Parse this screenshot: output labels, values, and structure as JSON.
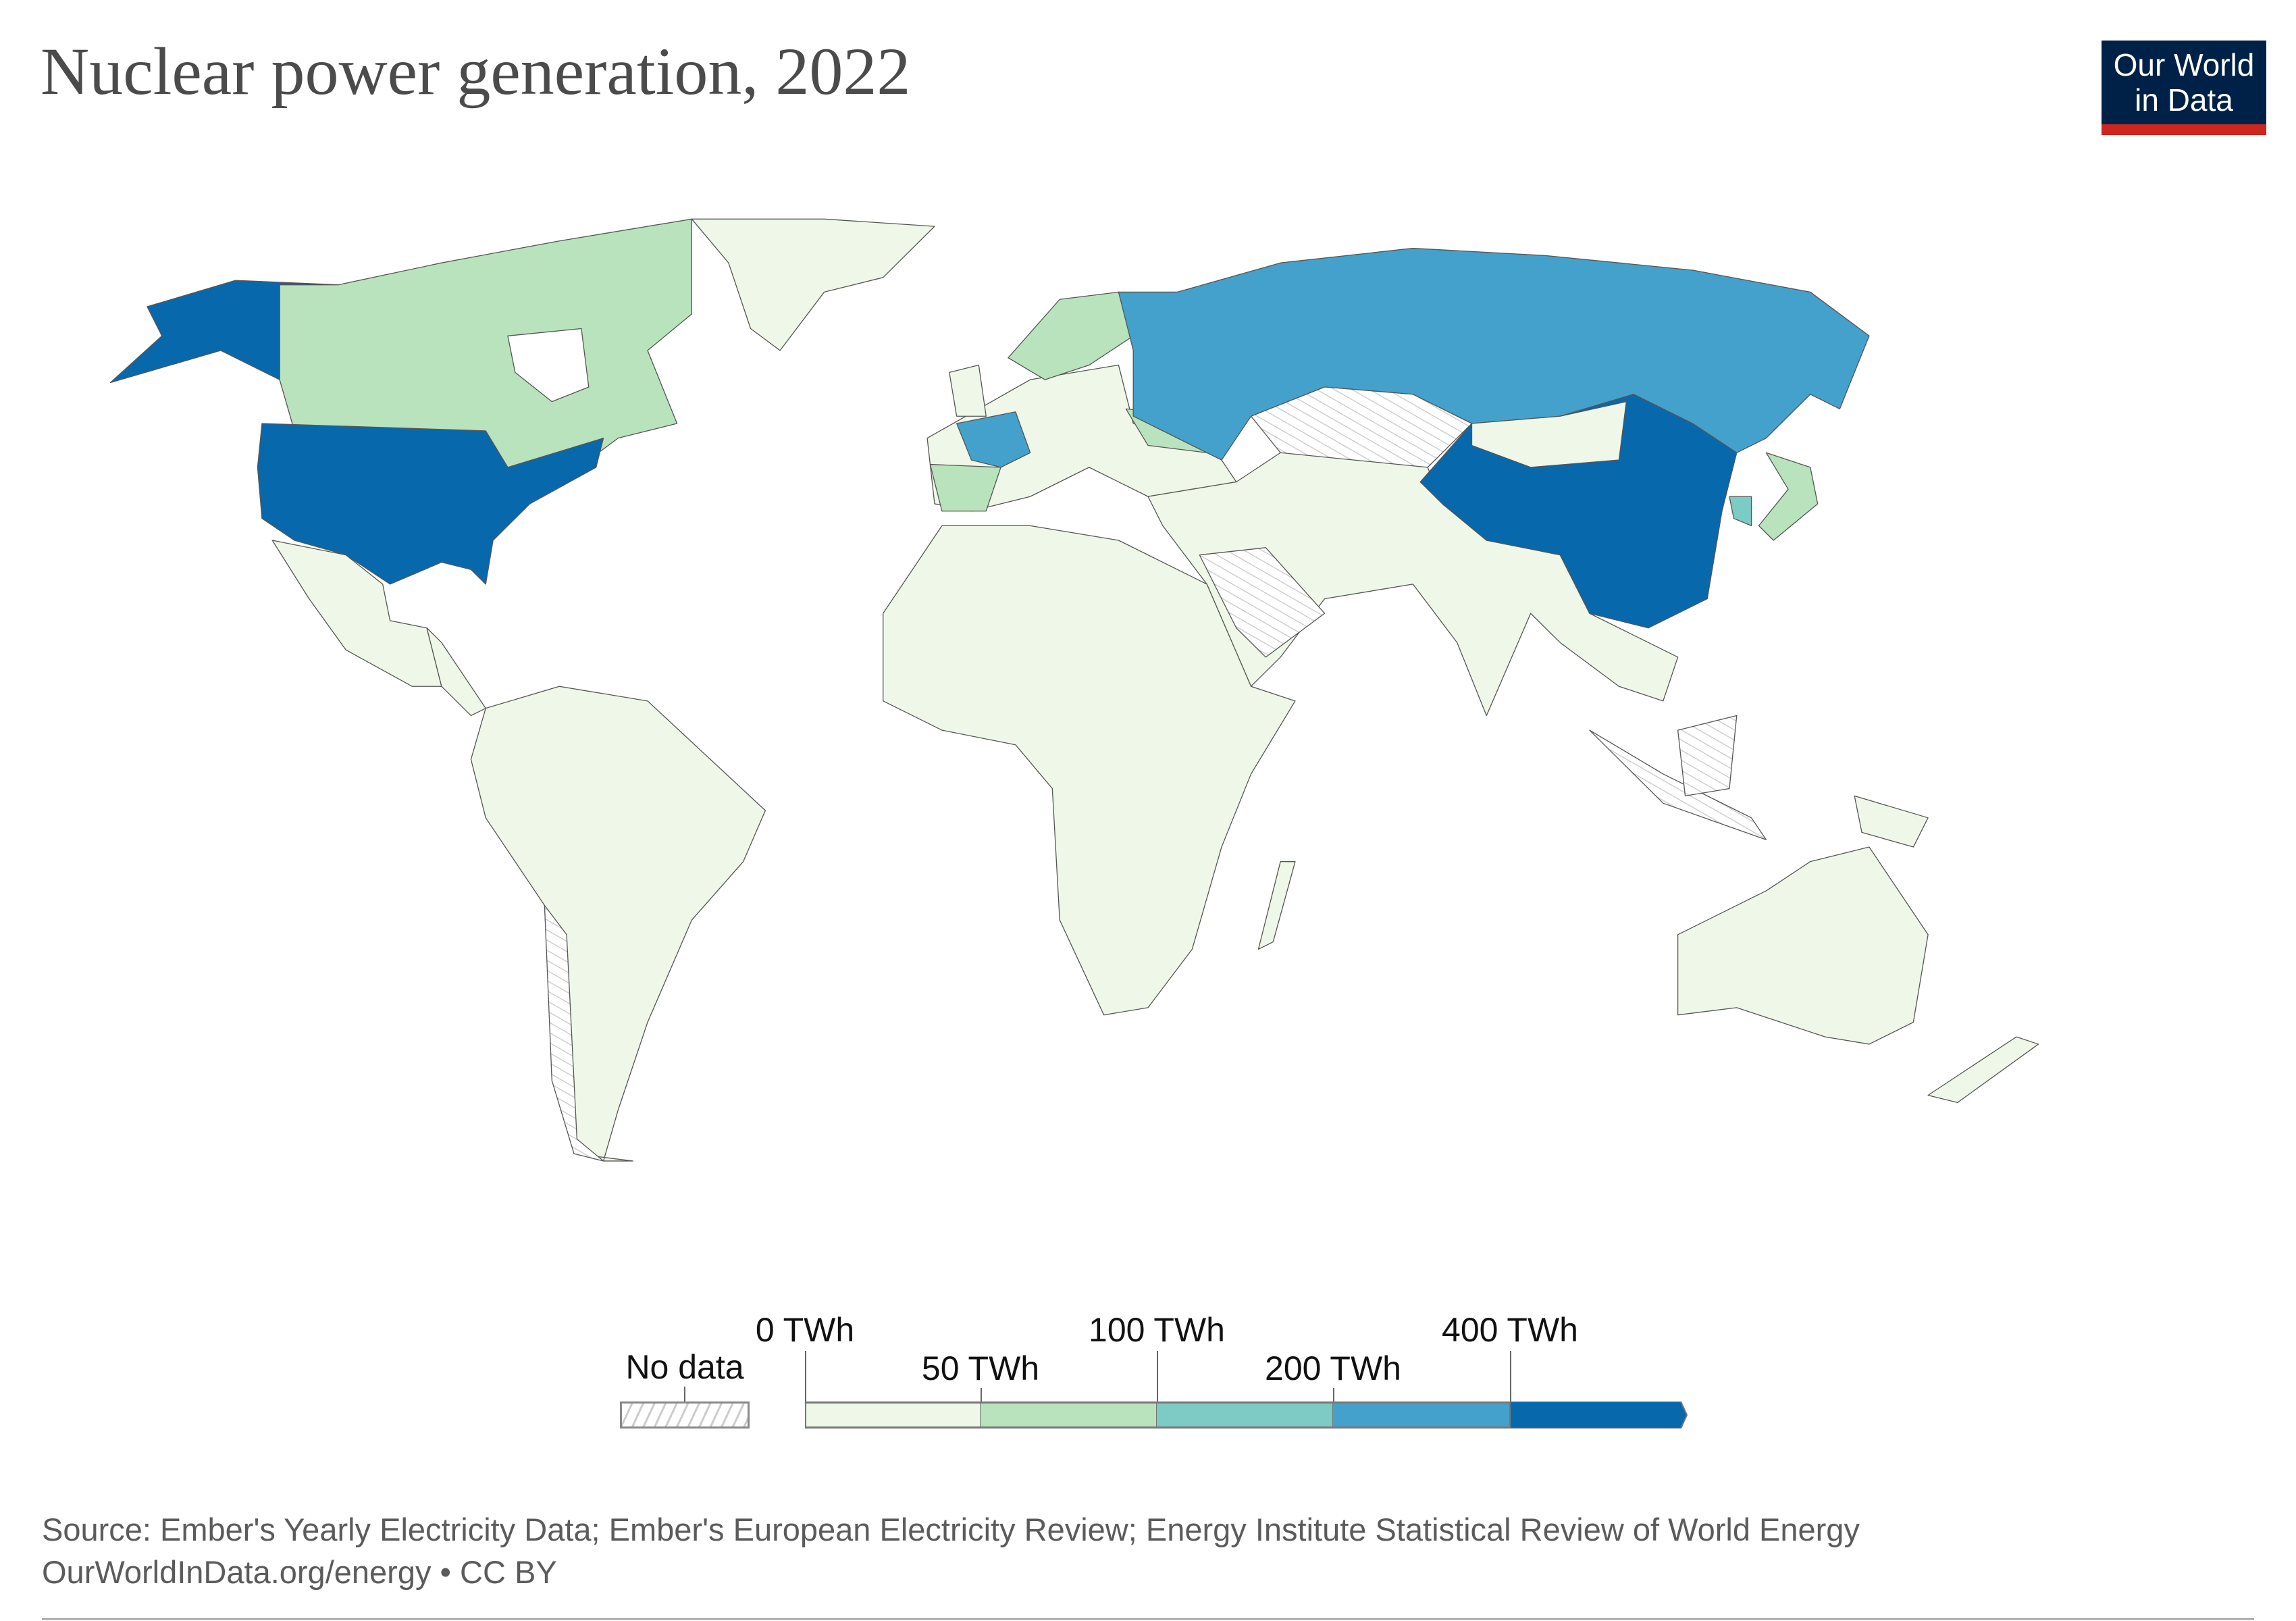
{
  "header": {
    "title": "Nuclear power generation, 2022"
  },
  "logo": {
    "line1": "Our World",
    "line2": "in Data"
  },
  "chart_data": {
    "type": "choropleth",
    "title": "Nuclear power generation, 2022",
    "unit": "TWh",
    "legend": {
      "no_data_label": "No data",
      "bins": [
        {
          "from": 0,
          "to": 50,
          "color": "#eff8e8"
        },
        {
          "from": 50,
          "to": 100,
          "color": "#b9e3bc"
        },
        {
          "from": 100,
          "to": 200,
          "color": "#7ccbc4"
        },
        {
          "from": 200,
          "to": 400,
          "color": "#43a1cb"
        },
        {
          "from": 400,
          "to": null,
          "color": "#0868ac"
        }
      ],
      "tick_labels": [
        "0 TWh",
        "50 TWh",
        "100 TWh",
        "200 TWh",
        "400 TWh"
      ]
    },
    "no_data_color": "#ffffff",
    "countries": [
      {
        "name": "United States",
        "bin": 4
      },
      {
        "name": "China",
        "bin": 4
      },
      {
        "name": "France",
        "bin": 3
      },
      {
        "name": "Russia",
        "bin": 3
      },
      {
        "name": "South Korea",
        "bin": 2
      },
      {
        "name": "Canada",
        "bin": 1
      },
      {
        "name": "Ukraine",
        "bin": 1
      },
      {
        "name": "Spain",
        "bin": 1
      },
      {
        "name": "Sweden",
        "bin": 1
      },
      {
        "name": "Japan",
        "bin": 1
      },
      {
        "name": "Greenland",
        "bin": 0
      },
      {
        "name": "Mexico",
        "bin": 0
      },
      {
        "name": "Central America",
        "bin": 0
      },
      {
        "name": "South America",
        "bin": 0
      },
      {
        "name": "Europe (other)",
        "bin": 0
      },
      {
        "name": "United Kingdom",
        "bin": 0
      },
      {
        "name": "Mongolia",
        "bin": 0
      },
      {
        "name": "Middle East & South Asia",
        "bin": 0
      },
      {
        "name": "Africa",
        "bin": 0
      },
      {
        "name": "Madagascar",
        "bin": 0
      },
      {
        "name": "Australia",
        "bin": 0
      },
      {
        "name": "New Zealand",
        "bin": 0
      },
      {
        "name": "Papua New Guinea",
        "bin": 0
      },
      {
        "name": "Kazakhstan",
        "bin": null
      },
      {
        "name": "Saudi Arabia",
        "bin": null
      },
      {
        "name": "Indonesia",
        "bin": null
      },
      {
        "name": "Chile",
        "bin": null
      }
    ]
  },
  "footer": {
    "source": "Source: Ember's Yearly Electricity Data; Ember's European Electricity Review; Energy Institute Statistical Review of World Energy",
    "link": "OurWorldInData.org/energy • CC BY"
  }
}
